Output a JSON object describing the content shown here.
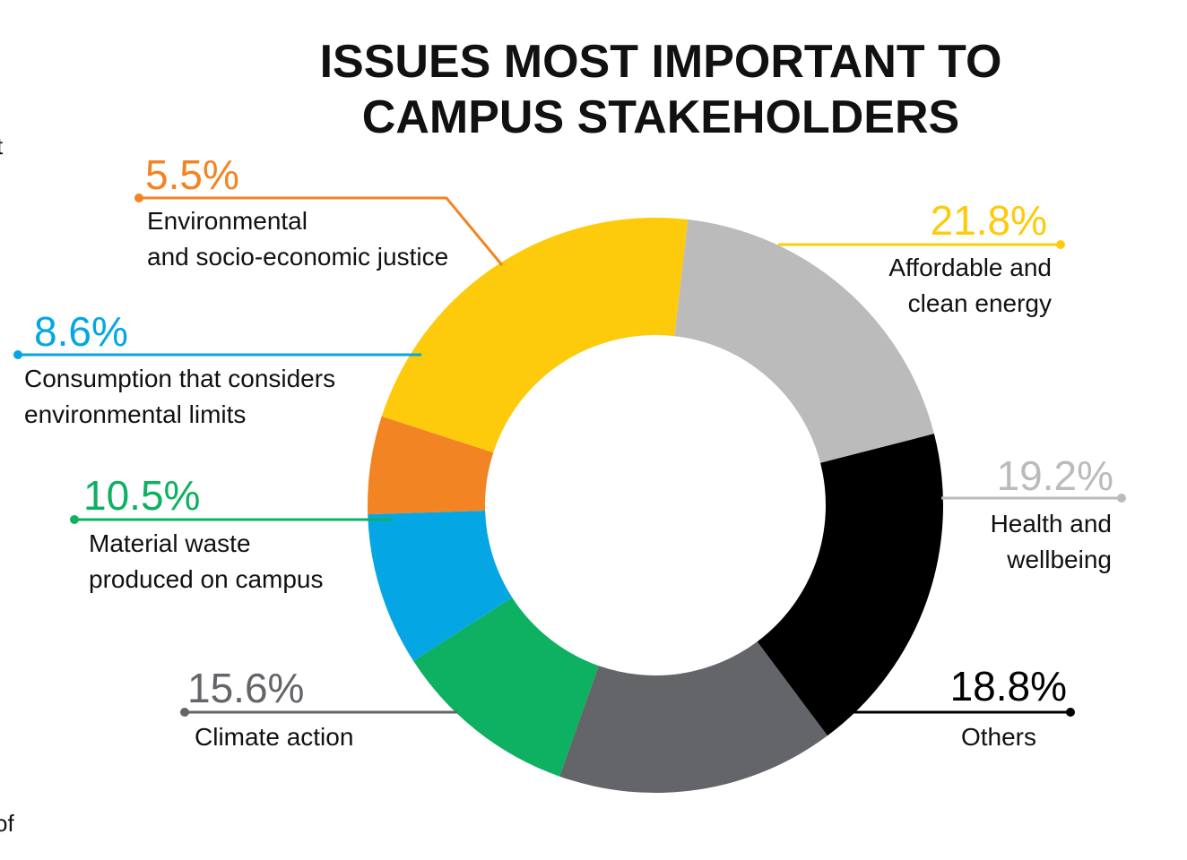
{
  "edge_fragments": [
    "t",
    "of"
  ],
  "chart_data": {
    "type": "pie",
    "variant": "donut",
    "title_lines": [
      "ISSUES MOST IMPORTANT TO",
      "CAMPUS STAKEHOLDERS"
    ],
    "unit": "%",
    "slices": [
      {
        "key": "affordable-energy",
        "value": 21.8,
        "label_pct": "21.8%",
        "label_lines": [
          "Affordable and",
          "clean energy"
        ],
        "color": "#fdcb0b"
      },
      {
        "key": "health-wellbeing",
        "value": 19.2,
        "label_pct": "19.2%",
        "label_lines": [
          "Health and",
          "wellbeing"
        ],
        "color": "#bbbbbb"
      },
      {
        "key": "others",
        "value": 18.8,
        "label_pct": "18.8%",
        "label_lines": [
          "Others"
        ],
        "color": "#000000"
      },
      {
        "key": "climate-action",
        "value": 15.6,
        "label_pct": "15.6%",
        "label_lines": [
          "Climate action"
        ],
        "color": "#636569"
      },
      {
        "key": "material-waste",
        "value": 10.5,
        "label_pct": "10.5%",
        "label_lines": [
          "Material waste",
          "produced on campus"
        ],
        "color": "#0eb061"
      },
      {
        "key": "consumption",
        "value": 8.6,
        "label_pct": "8.6%",
        "label_lines": [
          "Consumption that considers",
          "environmental limits"
        ],
        "color": "#04a7e3"
      },
      {
        "key": "justice",
        "value": 5.5,
        "label_pct": "5.5%",
        "label_lines": [
          "Environmental",
          "and socio-economic justice"
        ],
        "color": "#f28423"
      }
    ]
  }
}
